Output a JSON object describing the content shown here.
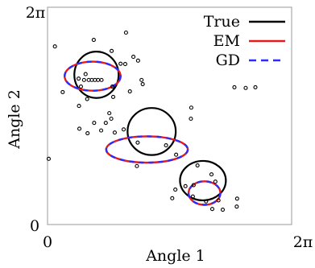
{
  "chart_data": {
    "type": "scatter",
    "xlabel": "Angle 1",
    "ylabel": "Angle 2",
    "xlim": [
      0,
      6.2832
    ],
    "ylim": [
      0,
      6.2832
    ],
    "x_ticks": [
      {
        "value": 0,
        "label": "0"
      },
      {
        "value": 6.2832,
        "label": "2π"
      }
    ],
    "y_ticks": [
      {
        "value": 0,
        "label": "0"
      },
      {
        "value": 6.2832,
        "label": "2π"
      }
    ],
    "grid": false,
    "legend_position": "top-right",
    "legend": [
      {
        "label": "True",
        "style": "solid",
        "color": "#000000"
      },
      {
        "label": "EM",
        "style": "solid-dashed",
        "color": "#e41a1c",
        "dash_color": "#2b2bff"
      },
      {
        "label": "GD",
        "style": "dashed",
        "color": "#2b2bff"
      }
    ],
    "ellipses": {
      "true": [
        {
          "cx": 1.26,
          "cy": 4.33,
          "rx": 0.57,
          "ry": 0.67
        },
        {
          "cx": 2.68,
          "cy": 2.69,
          "rx": 0.62,
          "ry": 0.68
        },
        {
          "cx": 4.0,
          "cy": 1.27,
          "rx": 0.59,
          "ry": 0.57
        }
      ],
      "em": [
        {
          "cx": 1.16,
          "cy": 4.29,
          "rx": 0.72,
          "ry": 0.42
        },
        {
          "cx": 2.56,
          "cy": 2.17,
          "rx": 1.05,
          "ry": 0.38
        },
        {
          "cx": 4.04,
          "cy": 0.91,
          "rx": 0.41,
          "ry": 0.34
        }
      ],
      "gd": [
        {
          "cx": 1.16,
          "cy": 4.29,
          "rx": 0.72,
          "ry": 0.42
        },
        {
          "cx": 2.56,
          "cy": 2.17,
          "rx": 1.05,
          "ry": 0.38
        },
        {
          "cx": 4.04,
          "cy": 0.91,
          "rx": 0.41,
          "ry": 0.34
        }
      ]
    },
    "points": [
      [
        0.19,
        5.15
      ],
      [
        1.19,
        5.34
      ],
      [
        2.02,
        5.55
      ],
      [
        1.65,
        5.02
      ],
      [
        1.88,
        4.65
      ],
      [
        2.0,
        4.64
      ],
      [
        2.21,
        4.85
      ],
      [
        2.33,
        4.74
      ],
      [
        2.42,
        4.18
      ],
      [
        2.45,
        4.06
      ],
      [
        0.39,
        3.83
      ],
      [
        0.8,
        4.22
      ],
      [
        0.86,
        3.99
      ],
      [
        0.94,
        4.18
      ],
      [
        0.98,
        4.35
      ],
      [
        1.06,
        4.18
      ],
      [
        1.14,
        4.18
      ],
      [
        1.22,
        4.18
      ],
      [
        1.3,
        4.18
      ],
      [
        1.39,
        4.18
      ],
      [
        1.02,
        3.63
      ],
      [
        0.81,
        3.43
      ],
      [
        1.67,
        3.99
      ],
      [
        1.69,
        3.69
      ],
      [
        1.59,
        3.22
      ],
      [
        1.64,
        3.06
      ],
      [
        1.5,
        2.94
      ],
      [
        1.73,
        2.66
      ],
      [
        1.38,
        2.72
      ],
      [
        1.2,
        2.94
      ],
      [
        1.03,
        2.64
      ],
      [
        0.82,
        2.77
      ],
      [
        2.12,
        3.85
      ],
      [
        1.96,
        2.75
      ],
      [
        2.32,
        2.37
      ],
      [
        3.05,
        2.29
      ],
      [
        2.3,
        1.69
      ],
      [
        3.31,
        2.02
      ],
      [
        3.86,
        1.71
      ],
      [
        3.76,
        1.14
      ],
      [
        4.22,
        1.45
      ],
      [
        4.32,
        1.24
      ],
      [
        3.29,
        1.01
      ],
      [
        3.21,
        0.76
      ],
      [
        4.08,
        0.67
      ],
      [
        4.4,
        0.7
      ],
      [
        4.24,
        0.45
      ],
      [
        3.55,
        1.11
      ],
      [
        3.74,
        0.81
      ],
      [
        4.51,
        0.43
      ],
      [
        4.81,
        3.97
      ],
      [
        5.1,
        3.95
      ],
      [
        5.35,
        3.97
      ],
      [
        3.7,
        3.38
      ],
      [
        3.69,
        3.06
      ],
      [
        0.03,
        1.9
      ],
      [
        4.88,
        0.75
      ],
      [
        4.87,
        0.52
      ]
    ]
  }
}
